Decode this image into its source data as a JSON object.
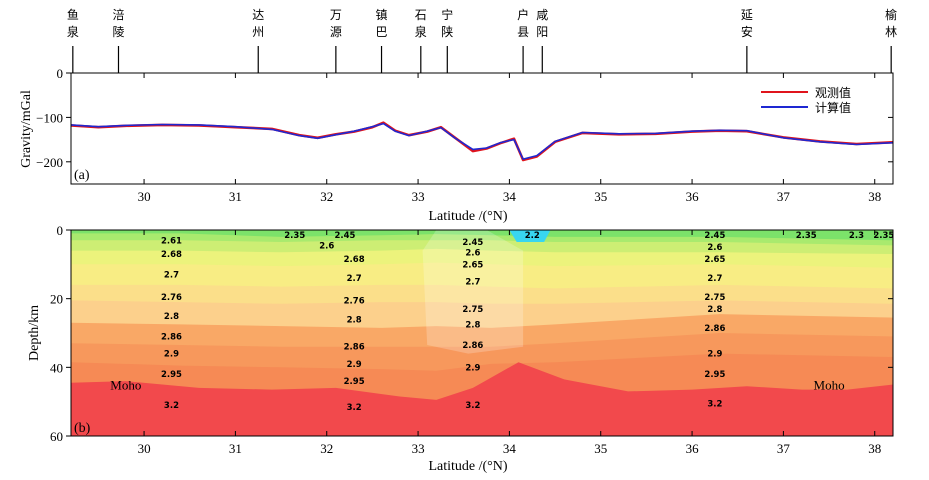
{
  "colors": {
    "observed": "#e0141c",
    "computed": "#1e28d2"
  },
  "chart_data": [
    {
      "type": "line",
      "panel_label": "(a)",
      "xlabel": "Latitude /(°N)",
      "ylabel": "Gravity/mGal",
      "xlim": [
        29.2,
        38.2
      ],
      "ylim": [
        -250,
        0
      ],
      "x_ticks": [
        30,
        31,
        32,
        33,
        34,
        35,
        36,
        37,
        38
      ],
      "y_ticks": [
        0,
        -100,
        -200
      ],
      "legend": "top-right",
      "stations": [
        {
          "name": "鱼泉",
          "lat": 29.22
        },
        {
          "name": "涪陵",
          "lat": 29.72
        },
        {
          "name": "达州",
          "lat": 31.25
        },
        {
          "name": "万源",
          "lat": 32.1
        },
        {
          "name": "镇巴",
          "lat": 32.6
        },
        {
          "name": "石泉",
          "lat": 33.03
        },
        {
          "name": "宁陕",
          "lat": 33.32
        },
        {
          "name": "户县",
          "lat": 34.15
        },
        {
          "name": "咸阳",
          "lat": 34.36
        },
        {
          "name": "延安",
          "lat": 36.6
        },
        {
          "name": "榆林",
          "lat": 38.18
        }
      ],
      "series": [
        {
          "name": "观测值",
          "x": [
            29.2,
            29.5,
            29.8,
            30.2,
            30.6,
            31.0,
            31.4,
            31.7,
            31.9,
            32.1,
            32.3,
            32.5,
            32.62,
            32.75,
            32.9,
            33.1,
            33.25,
            33.4,
            33.6,
            33.75,
            33.9,
            34.05,
            34.15,
            34.3,
            34.5,
            34.8,
            35.2,
            35.6,
            36.0,
            36.3,
            36.6,
            37.0,
            37.4,
            37.8,
            38.2
          ],
          "values": [
            -118,
            -122,
            -119,
            -117,
            -118,
            -122,
            -126,
            -140,
            -146,
            -138,
            -132,
            -122,
            -112,
            -130,
            -140,
            -132,
            -122,
            -145,
            -176,
            -170,
            -158,
            -148,
            -196,
            -188,
            -155,
            -135,
            -138,
            -137,
            -132,
            -130,
            -131,
            -145,
            -154,
            -160,
            -156
          ]
        },
        {
          "name": "计算值",
          "x": [
            29.2,
            29.5,
            29.8,
            30.2,
            30.6,
            31.0,
            31.4,
            31.7,
            31.9,
            32.1,
            32.3,
            32.5,
            32.62,
            32.75,
            32.9,
            33.1,
            33.25,
            33.4,
            33.6,
            33.75,
            33.9,
            34.05,
            34.15,
            34.3,
            34.5,
            34.8,
            35.2,
            35.6,
            36.0,
            36.3,
            36.6,
            37.0,
            37.4,
            37.8,
            38.2
          ],
          "values": [
            -117,
            -121,
            -118,
            -116,
            -117,
            -121,
            -127,
            -141,
            -147,
            -139,
            -131,
            -121,
            -114,
            -131,
            -141,
            -131,
            -123,
            -146,
            -172,
            -169,
            -157,
            -150,
            -194,
            -186,
            -154,
            -134,
            -137,
            -136,
            -131,
            -129,
            -130,
            -146,
            -155,
            -161,
            -157
          ]
        }
      ]
    },
    {
      "type": "area",
      "panel_label": "(b)",
      "xlabel": "Latitude /(°N)",
      "ylabel": "Depth/km",
      "xlim": [
        29.2,
        38.2
      ],
      "ylim": [
        0,
        60
      ],
      "x_ticks": [
        30,
        31,
        32,
        33,
        34,
        35,
        36,
        37,
        38
      ],
      "y_ticks": [
        0,
        20,
        40,
        60
      ],
      "moho_label": "Moho",
      "moho_positions": [
        29.8,
        37.5
      ],
      "moho_depth": 45,
      "layers": [
        {
          "density": "2.35",
          "color": "#7ce26a",
          "x": [
            29.2,
            30.4,
            31.5,
            32.6,
            33.2,
            33.8,
            34.5,
            36.3,
            38.2
          ],
          "top": [
            0,
            0,
            0,
            0,
            0,
            0,
            0,
            0,
            0
          ]
        },
        {
          "density": "2.45",
          "color": "#a9ea6e",
          "x": [
            29.2,
            30.4,
            31.5,
            32.6,
            33.2,
            33.8,
            34.5,
            36.3,
            38.2
          ],
          "top": [
            1,
            1,
            2,
            1.5,
            1.2,
            1.5,
            2,
            2,
            3
          ]
        },
        {
          "density": "2.6",
          "color": "#cdee74",
          "x": [
            29.2,
            30.4,
            31.5,
            32.6,
            33.2,
            33.8,
            34.5,
            36.3,
            38.2
          ],
          "top": [
            3,
            3,
            3.5,
            3,
            3,
            3,
            3.5,
            3.5,
            4.5
          ]
        },
        {
          "density": "2.68",
          "color": "#ecf37c",
          "x": [
            29.2,
            30.4,
            31.5,
            32.6,
            33.2,
            33.8,
            34.5,
            36.3,
            38.2
          ],
          "top": [
            6,
            6,
            6.5,
            6,
            5.5,
            6,
            6.5,
            6.5,
            7
          ]
        },
        {
          "density": "2.7",
          "color": "#f8ed84",
          "x": [
            29.2,
            30.4,
            31.5,
            32.6,
            33.2,
            33.8,
            34.5,
            36.3,
            38.2
          ],
          "top": [
            10,
            10,
            10.5,
            10,
            9.5,
            10,
            10.5,
            10,
            11
          ]
        },
        {
          "density": "2.76",
          "color": "#fbdf8a",
          "x": [
            29.2,
            30.4,
            31.5,
            32.6,
            33.2,
            33.8,
            34.5,
            36.3,
            38.2
          ],
          "top": [
            16,
            16,
            16.5,
            16,
            16,
            16.5,
            17,
            16,
            17
          ]
        },
        {
          "density": "2.8",
          "color": "#fcd08c",
          "x": [
            29.2,
            30.4,
            31.5,
            32.6,
            33.2,
            33.8,
            34.5,
            36.3,
            38.2
          ],
          "top": [
            20.5,
            21,
            21.5,
            21,
            21,
            21.5,
            21.5,
            20.5,
            21.5
          ]
        },
        {
          "density": "2.86",
          "color": "#f9a866",
          "x": [
            29.2,
            30.4,
            31.5,
            32.6,
            33.2,
            33.8,
            34.5,
            36.3,
            38.2
          ],
          "top": [
            27,
            27.5,
            28,
            28.5,
            28,
            28.5,
            27.5,
            24.5,
            25.5
          ]
        },
        {
          "density": "2.9",
          "color": "#f7985c",
          "x": [
            29.2,
            30.4,
            31.5,
            32.6,
            33.2,
            33.8,
            34.5,
            36.3,
            38.2
          ],
          "top": [
            33,
            33.5,
            34,
            34,
            34,
            34,
            33,
            30,
            31
          ]
        },
        {
          "density": "2.95",
          "color": "#f68a55",
          "x": [
            29.2,
            30.4,
            31.5,
            32.6,
            33.2,
            33.8,
            34.5,
            36.3,
            38.2
          ],
          "top": [
            38.5,
            39.5,
            40,
            40.5,
            41,
            39,
            38.5,
            36,
            37
          ]
        },
        {
          "density": "3.2",
          "color": "#f2494c",
          "x": [
            29.2,
            29.8,
            30.6,
            31.4,
            32.1,
            32.8,
            33.2,
            33.6,
            34.1,
            34.6,
            35.3,
            36.0,
            36.6,
            37.2,
            37.7,
            38.2
          ],
          "top": [
            44.5,
            44,
            46,
            46.5,
            46,
            48.5,
            49.5,
            46,
            38.5,
            43.5,
            47,
            46.5,
            45.5,
            46.5,
            46.5,
            45
          ]
        }
      ],
      "density_labels": [
        {
          "text": "2.61",
          "x": 30.3,
          "y": 3
        },
        {
          "text": "2.68",
          "x": 30.3,
          "y": 7
        },
        {
          "text": "2.7",
          "x": 30.3,
          "y": 13
        },
        {
          "text": "2.76",
          "x": 30.3,
          "y": 19.5
        },
        {
          "text": "2.8",
          "x": 30.3,
          "y": 25
        },
        {
          "text": "2.86",
          "x": 30.3,
          "y": 31
        },
        {
          "text": "2.9",
          "x": 30.3,
          "y": 36
        },
        {
          "text": "2.95",
          "x": 30.3,
          "y": 42
        },
        {
          "text": "3.2",
          "x": 30.3,
          "y": 51
        },
        {
          "text": "2.35",
          "x": 31.65,
          "y": 1.5
        },
        {
          "text": "2.45",
          "x": 32.2,
          "y": 1.5
        },
        {
          "text": "2.6",
          "x": 32.0,
          "y": 4.5
        },
        {
          "text": "2.68",
          "x": 32.3,
          "y": 8.5
        },
        {
          "text": "2.7",
          "x": 32.3,
          "y": 14
        },
        {
          "text": "2.76",
          "x": 32.3,
          "y": 20.5
        },
        {
          "text": "2.8",
          "x": 32.3,
          "y": 26
        },
        {
          "text": "2.86",
          "x": 32.3,
          "y": 34
        },
        {
          "text": "2.9",
          "x": 32.3,
          "y": 39
        },
        {
          "text": "2.95",
          "x": 32.3,
          "y": 44
        },
        {
          "text": "3.2",
          "x": 32.3,
          "y": 51.5
        },
        {
          "text": "2.45",
          "x": 33.6,
          "y": 3.5
        },
        {
          "text": "2.6",
          "x": 33.6,
          "y": 6.5
        },
        {
          "text": "2.65",
          "x": 33.6,
          "y": 10
        },
        {
          "text": "2.7",
          "x": 33.6,
          "y": 15
        },
        {
          "text": "2.75",
          "x": 33.6,
          "y": 23
        },
        {
          "text": "2.8",
          "x": 33.6,
          "y": 27.5
        },
        {
          "text": "2.86",
          "x": 33.6,
          "y": 33.5
        },
        {
          "text": "2.9",
          "x": 33.6,
          "y": 40
        },
        {
          "text": "3.2",
          "x": 33.6,
          "y": 51
        },
        {
          "text": "2.2",
          "x": 34.25,
          "y": 1.5
        },
        {
          "text": "2.45",
          "x": 36.25,
          "y": 1.5
        },
        {
          "text": "2.6",
          "x": 36.25,
          "y": 5
        },
        {
          "text": "2.65",
          "x": 36.25,
          "y": 8.5
        },
        {
          "text": "2.7",
          "x": 36.25,
          "y": 14
        },
        {
          "text": "2.75",
          "x": 36.25,
          "y": 19.5
        },
        {
          "text": "2.8",
          "x": 36.25,
          "y": 23
        },
        {
          "text": "2.86",
          "x": 36.25,
          "y": 28.5
        },
        {
          "text": "2.9",
          "x": 36.25,
          "y": 36
        },
        {
          "text": "2.95",
          "x": 36.25,
          "y": 42
        },
        {
          "text": "3.2",
          "x": 36.25,
          "y": 50.5
        },
        {
          "text": "2.35",
          "x": 37.25,
          "y": 1.5
        },
        {
          "text": "2.3",
          "x": 37.8,
          "y": 1.5
        },
        {
          "text": "2.35",
          "x": 38.1,
          "y": 1.5
        }
      ]
    }
  ]
}
